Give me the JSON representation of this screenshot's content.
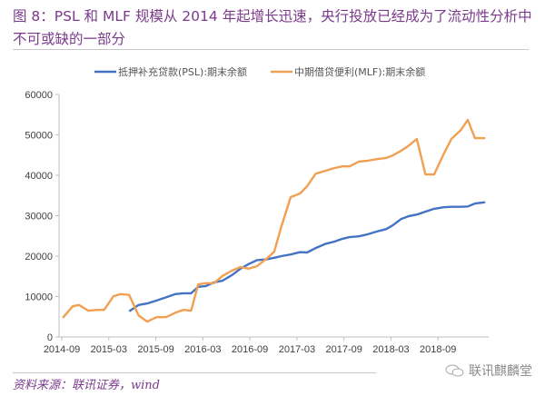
{
  "header": {
    "title": "图 8：PSL 和 MLF 规模从 2014 年起增长迅速，央行投放已经成为了流动性分析中不可或缺的一部分"
  },
  "footer": {
    "source": "资料来源：联讯证券，wind",
    "watermark": "联讯麒麟堂",
    "watermark_icon": "wechat-icon"
  },
  "colors": {
    "title": "#7b3a8c",
    "psl": "#4472c4",
    "mlf": "#f0a050",
    "axis": "#bfbfbf"
  },
  "chart_data": {
    "type": "line",
    "title": "",
    "xlabel": "",
    "ylabel": "",
    "x_unit": "months since 2014-09",
    "xlim": [
      0,
      56
    ],
    "ylim": [
      0,
      60000
    ],
    "yticks": [
      0,
      10000,
      20000,
      30000,
      40000,
      50000,
      60000
    ],
    "ytick_labels": [
      "0",
      "10000",
      "20000",
      "30000",
      "40000",
      "50000",
      "60000"
    ],
    "xticks": [
      0,
      6,
      12,
      18,
      24,
      30,
      36,
      42,
      48
    ],
    "xtick_labels": [
      "2014-09",
      "2015-03",
      "2015-09",
      "2016-03",
      "2016-09",
      "2017-03",
      "2017-09",
      "2018-03",
      "2018-09"
    ],
    "grid": false,
    "legend_position": "top",
    "series": [
      {
        "name": "抵押补充贷款(PSL):期末余额",
        "color": "#4472c4",
        "points": [
          [
            8.7,
            6500
          ],
          [
            9.8,
            7900
          ],
          [
            10.9,
            8300
          ],
          [
            12.1,
            9000
          ],
          [
            13.3,
            9800
          ],
          [
            14.5,
            10600
          ],
          [
            15.5,
            10800
          ],
          [
            16.5,
            10800
          ],
          [
            17.4,
            12400
          ],
          [
            18.4,
            12600
          ],
          [
            19.4,
            13500
          ],
          [
            20.5,
            13900
          ],
          [
            21.7,
            15300
          ],
          [
            22.8,
            16900
          ],
          [
            23.8,
            18000
          ],
          [
            24.9,
            19000
          ],
          [
            26.1,
            19200
          ],
          [
            27.1,
            19600
          ],
          [
            28.0,
            20000
          ],
          [
            29.2,
            20400
          ],
          [
            30.4,
            21000
          ],
          [
            31.3,
            20900
          ],
          [
            32.4,
            22000
          ],
          [
            33.6,
            23000
          ],
          [
            34.8,
            23600
          ],
          [
            35.8,
            24300
          ],
          [
            36.7,
            24700
          ],
          [
            37.9,
            24900
          ],
          [
            39.0,
            25400
          ],
          [
            40.2,
            26100
          ],
          [
            41.4,
            26700
          ],
          [
            42.2,
            27600
          ],
          [
            43.3,
            29200
          ],
          [
            44.3,
            29900
          ],
          [
            45.3,
            30300
          ],
          [
            46.4,
            31000
          ],
          [
            47.5,
            31700
          ],
          [
            48.7,
            32100
          ],
          [
            49.7,
            32200
          ],
          [
            50.9,
            32200
          ],
          [
            51.8,
            32300
          ],
          [
            52.7,
            33000
          ],
          [
            53.9,
            33300
          ]
        ]
      },
      {
        "name": "中期借贷便利(MLF):期末余额",
        "color": "#f0a050",
        "points": [
          [
            0.2,
            4900
          ],
          [
            1.4,
            7600
          ],
          [
            2.2,
            7900
          ],
          [
            3.4,
            6500
          ],
          [
            4.5,
            6700
          ],
          [
            5.4,
            6700
          ],
          [
            6.6,
            10100
          ],
          [
            7.5,
            10600
          ],
          [
            8.6,
            10400
          ],
          [
            9.8,
            5300
          ],
          [
            10.9,
            3800
          ],
          [
            12.1,
            4900
          ],
          [
            13.3,
            4900
          ],
          [
            14.5,
            6000
          ],
          [
            15.5,
            6700
          ],
          [
            16.5,
            6500
          ],
          [
            17.4,
            13000
          ],
          [
            18.4,
            13300
          ],
          [
            19.4,
            13300
          ],
          [
            20.5,
            15100
          ],
          [
            21.7,
            16400
          ],
          [
            22.8,
            17300
          ],
          [
            23.8,
            16900
          ],
          [
            24.9,
            17500
          ],
          [
            26.1,
            19300
          ],
          [
            27.1,
            21100
          ],
          [
            28.0,
            27200
          ],
          [
            29.2,
            34600
          ],
          [
            30.4,
            35500
          ],
          [
            31.3,
            37300
          ],
          [
            32.4,
            40400
          ],
          [
            33.6,
            41100
          ],
          [
            34.8,
            41800
          ],
          [
            35.8,
            42200
          ],
          [
            36.7,
            42200
          ],
          [
            37.9,
            43400
          ],
          [
            39.0,
            43600
          ],
          [
            40.2,
            44000
          ],
          [
            41.4,
            44300
          ],
          [
            42.2,
            44900
          ],
          [
            43.3,
            46100
          ],
          [
            44.3,
            47400
          ],
          [
            45.3,
            49000
          ],
          [
            46.4,
            40200
          ],
          [
            47.5,
            40200
          ],
          [
            48.7,
            45200
          ],
          [
            49.7,
            49000
          ],
          [
            50.9,
            51200
          ],
          [
            51.8,
            53700
          ],
          [
            52.7,
            49200
          ],
          [
            53.9,
            49200
          ]
        ]
      }
    ]
  }
}
